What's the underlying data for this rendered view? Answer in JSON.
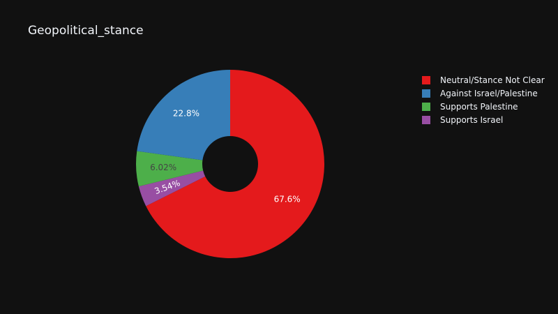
{
  "chart_data": {
    "type": "pie",
    "title": "Geopolitical_stance",
    "hole": true,
    "legend_position": "top-right",
    "slices": [
      {
        "label": "Neutral/Stance Not Clear",
        "value": 67.6,
        "text": "67.6%",
        "color": "#e41a1c",
        "text_color": "#ffffff"
      },
      {
        "label": "Supports Israel",
        "value": 3.54,
        "text": "3.54%",
        "color": "#984ea3",
        "text_color": "#ffffff"
      },
      {
        "label": "Supports Palestine",
        "value": 6.02,
        "text": "6.02%",
        "color": "#4daf4a",
        "text_color": "#444444"
      },
      {
        "label": "Against Israel/Palestine",
        "value": 22.8,
        "text": "22.8%",
        "color": "#377eb8",
        "text_color": "#ffffff"
      }
    ],
    "legend": [
      {
        "label": "Neutral/Stance Not Clear",
        "color": "#e41a1c"
      },
      {
        "label": "Against Israel/Palestine",
        "color": "#377eb8"
      },
      {
        "label": "Supports Palestine",
        "color": "#4daf4a"
      },
      {
        "label": "Supports Israel",
        "color": "#984ea3"
      }
    ]
  }
}
